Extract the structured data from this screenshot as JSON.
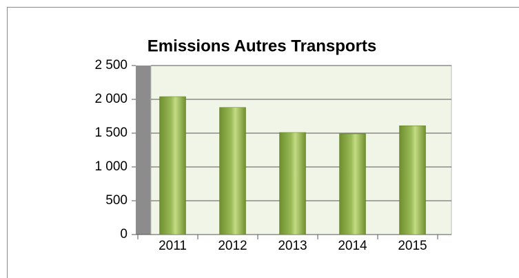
{
  "chart_data": {
    "type": "bar",
    "title": "Emissions Autres Transports",
    "categories": [
      "2011",
      "2012",
      "2013",
      "2014",
      "2015"
    ],
    "values": [
      2040,
      1880,
      1510,
      1490,
      1610
    ],
    "color": "#9bbb59",
    "ylim": [
      0,
      2500
    ],
    "yticks": [
      0,
      500,
      {
        "value": 1000,
        "label": "1 000"
      },
      {
        "value": 1500,
        "label": "1 500"
      },
      {
        "value": 2000,
        "label": "2 000"
      },
      {
        "value": 2500,
        "label": "2 500"
      }
    ],
    "grid": true
  }
}
